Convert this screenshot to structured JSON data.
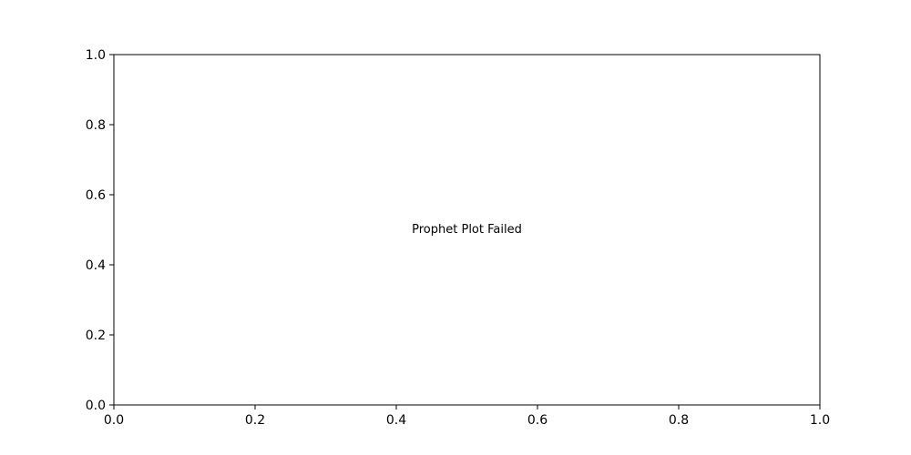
{
  "chart_data": {
    "type": "line",
    "title": "",
    "xlabel": "",
    "ylabel": "",
    "xlim": [
      0.0,
      1.0
    ],
    "ylim": [
      0.0,
      1.0
    ],
    "xticks": [
      "0.0",
      "0.2",
      "0.4",
      "0.6",
      "0.8",
      "1.0"
    ],
    "yticks": [
      "0.0",
      "0.2",
      "0.4",
      "0.6",
      "0.8",
      "1.0"
    ],
    "grid": false,
    "legend": "none",
    "series": [],
    "annotation": {
      "text": "Prophet Plot Failed",
      "x": 0.5,
      "y": 0.5
    }
  }
}
